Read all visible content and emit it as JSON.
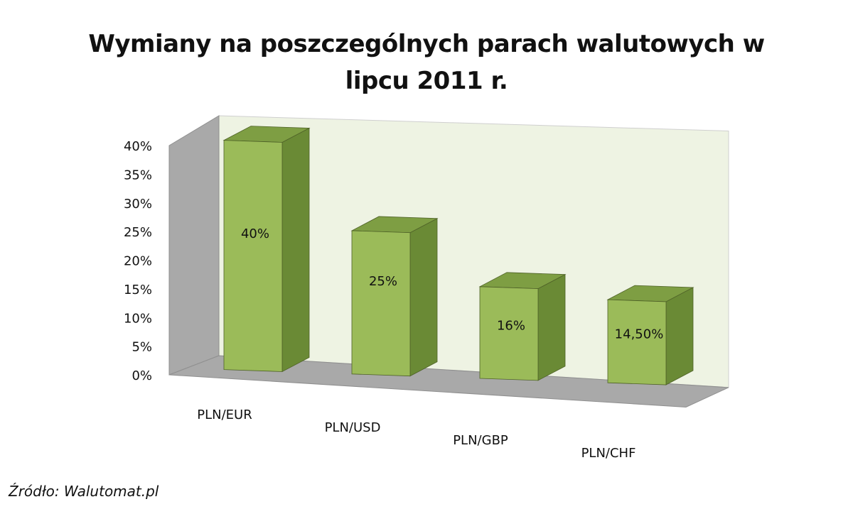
{
  "chart_data": {
    "type": "bar",
    "title": "Wymiany na poszczególnych parach walutowych w lipcu 2011 r.",
    "categories": [
      "PLN/EUR",
      "PLN/USD",
      "PLN/GBP",
      "PLN/CHF"
    ],
    "values": [
      40,
      25,
      16,
      14.5
    ],
    "data_labels": [
      "40%",
      "25%",
      "16%",
      "14,50%"
    ],
    "yticks": [
      "0%",
      "5%",
      "10%",
      "15%",
      "20%",
      "25%",
      "30%",
      "35%",
      "40%"
    ],
    "ylim": [
      0,
      40
    ],
    "grid": false,
    "style": "3d-column",
    "colors": {
      "bar_front": "#9BBB59",
      "bar_side": "#6A8A35",
      "bar_top": "#7E9E43",
      "back_wall": "#EEF3E3",
      "side_wall": "#A9A9A9",
      "floor": "#A9A9A9",
      "edge": "#4F6228"
    }
  },
  "source": "Źródło: Walutomat.pl"
}
